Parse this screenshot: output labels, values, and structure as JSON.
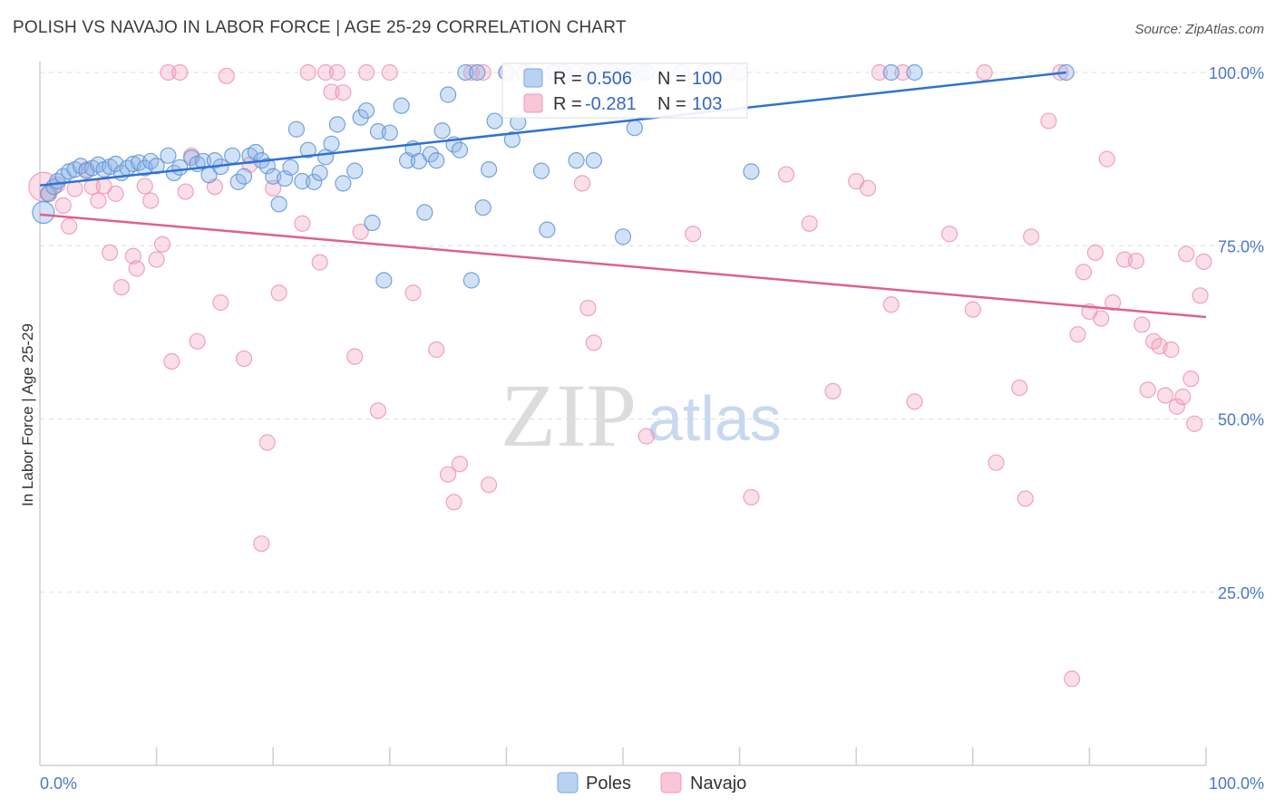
{
  "header": {
    "title": "POLISH VS NAVAJO IN LABOR FORCE | AGE 25-29 CORRELATION CHART",
    "source": "Source: ZipAtlas.com"
  },
  "watermark": {
    "zip": "ZIP",
    "atlas": "atlas"
  },
  "legend": {
    "row1": {
      "r_label": "R =",
      "r_value": "0.506",
      "n_label": "N =",
      "n_value": "100"
    },
    "row2": {
      "r_label": "R =",
      "r_value": "-0.281",
      "n_label": "N =",
      "n_value": "103"
    }
  },
  "bottom_legend": {
    "poles": "Poles",
    "navajo": "Navajo"
  },
  "chart_data": {
    "type": "scatter",
    "ylabel": "In Labor Force | Age 25-29",
    "x_tick_labels": [
      "0.0%",
      "100.0%"
    ],
    "y_tick_labels": [
      "25.0%",
      "50.0%",
      "75.0%",
      "100.0%"
    ],
    "xlim": [
      0,
      100
    ],
    "ylim": [
      0,
      101
    ],
    "grid": true,
    "colors": {
      "poles": "#8fb6e8",
      "poles_line": "#2e72d2",
      "navajo": "#f2a9c2",
      "navajo_line": "#e0608f"
    },
    "series": [
      {
        "name": "Poles",
        "r": 0.506,
        "n": 100,
        "trend": [
          [
            0,
            83.7
          ],
          [
            88,
            100
          ]
        ],
        "points": [
          [
            0.3,
            79.8
          ],
          [
            0.7,
            82.5
          ],
          [
            1.2,
            83.5
          ],
          [
            1.5,
            84.3
          ],
          [
            2,
            85
          ],
          [
            2.5,
            85.7
          ],
          [
            3,
            86
          ],
          [
            3.5,
            86.5
          ],
          [
            4,
            85.8
          ],
          [
            4.5,
            86.2
          ],
          [
            5,
            86.7
          ],
          [
            5.5,
            86
          ],
          [
            6,
            86.4
          ],
          [
            6.5,
            86.8
          ],
          [
            7,
            85.5
          ],
          [
            7.5,
            86.2
          ],
          [
            8,
            86.8
          ],
          [
            8.5,
            87
          ],
          [
            9,
            86.2
          ],
          [
            9.5,
            87.2
          ],
          [
            10,
            86.5
          ],
          [
            11,
            88
          ],
          [
            11.5,
            85.5
          ],
          [
            12,
            86.3
          ],
          [
            13,
            87.7
          ],
          [
            13.5,
            86.8
          ],
          [
            14,
            87.2
          ],
          [
            14.5,
            85.2
          ],
          [
            15,
            87.3
          ],
          [
            15.5,
            86.4
          ],
          [
            16.5,
            88
          ],
          [
            17,
            84.2
          ],
          [
            17.5,
            85
          ],
          [
            18,
            88
          ],
          [
            18.5,
            88.5
          ],
          [
            19,
            87.3
          ],
          [
            19.5,
            86.5
          ],
          [
            20,
            85
          ],
          [
            20.5,
            81
          ],
          [
            21,
            84.7
          ],
          [
            21.5,
            86.3
          ],
          [
            22,
            91.8
          ],
          [
            22.5,
            84.3
          ],
          [
            23,
            88.8
          ],
          [
            23.5,
            84.2
          ],
          [
            24,
            85.5
          ],
          [
            24.5,
            87.8
          ],
          [
            25,
            89.7
          ],
          [
            25.5,
            92.5
          ],
          [
            26,
            84
          ],
          [
            27,
            85.8
          ],
          [
            27.5,
            93.5
          ],
          [
            28,
            94.5
          ],
          [
            28.5,
            78.3
          ],
          [
            29,
            91.5
          ],
          [
            29.5,
            70
          ],
          [
            30,
            91.3
          ],
          [
            31,
            95.2
          ],
          [
            31.5,
            87.3
          ],
          [
            32,
            89
          ],
          [
            32.5,
            87.2
          ],
          [
            33,
            79.8
          ],
          [
            33.5,
            88.2
          ],
          [
            34,
            87.3
          ],
          [
            34.5,
            91.6
          ],
          [
            35,
            96.8
          ],
          [
            35.5,
            89.6
          ],
          [
            36,
            88.8
          ],
          [
            36.5,
            100
          ],
          [
            37,
            70
          ],
          [
            37.5,
            100
          ],
          [
            38,
            80.5
          ],
          [
            38.5,
            86
          ],
          [
            39,
            93
          ],
          [
            40,
            100
          ],
          [
            40.5,
            90.3
          ],
          [
            41,
            92.8
          ],
          [
            41.5,
            100
          ],
          [
            43,
            85.8
          ],
          [
            43.5,
            77.3
          ],
          [
            44,
            100
          ],
          [
            45,
            100
          ],
          [
            46,
            87.3
          ],
          [
            47,
            100
          ],
          [
            47.5,
            87.3
          ],
          [
            48,
            100
          ],
          [
            49,
            100
          ],
          [
            50,
            76.3
          ],
          [
            50.5,
            100
          ],
          [
            51,
            92
          ],
          [
            51.5,
            100
          ],
          [
            52,
            100
          ],
          [
            55,
            100
          ],
          [
            57,
            100
          ],
          [
            60,
            100
          ],
          [
            61,
            85.7
          ],
          [
            73,
            100
          ],
          [
            75,
            100
          ],
          [
            88,
            100
          ]
        ]
      },
      {
        "name": "Navajo",
        "r": -0.281,
        "n": 103,
        "trend": [
          [
            0,
            79.5
          ],
          [
            100,
            64.7
          ]
        ],
        "points": [
          [
            0.3,
            83.5
          ],
          [
            0.8,
            82.5
          ],
          [
            1.5,
            83.8
          ],
          [
            2,
            80.8
          ],
          [
            2.5,
            77.8
          ],
          [
            3,
            83.2
          ],
          [
            4,
            86
          ],
          [
            4.5,
            83.5
          ],
          [
            5,
            81.5
          ],
          [
            5.5,
            83.6
          ],
          [
            6,
            74
          ],
          [
            6.5,
            82.5
          ],
          [
            7,
            69
          ],
          [
            8,
            73.5
          ],
          [
            8.3,
            71.7
          ],
          [
            9,
            83.6
          ],
          [
            9.5,
            81.5
          ],
          [
            10,
            73
          ],
          [
            10.5,
            75.2
          ],
          [
            11,
            100
          ],
          [
            11.3,
            58.3
          ],
          [
            12,
            100
          ],
          [
            12.5,
            82.8
          ],
          [
            13,
            88
          ],
          [
            13.5,
            61.2
          ],
          [
            15,
            83.5
          ],
          [
            15.5,
            66.8
          ],
          [
            16,
            99.5
          ],
          [
            17.5,
            58.7
          ],
          [
            18,
            86.7
          ],
          [
            19,
            32
          ],
          [
            19.5,
            46.6
          ],
          [
            20,
            83.3
          ],
          [
            20.5,
            68.2
          ],
          [
            22.5,
            78.2
          ],
          [
            23,
            100
          ],
          [
            24,
            72.6
          ],
          [
            24.5,
            100
          ],
          [
            25,
            97.2
          ],
          [
            25.5,
            100
          ],
          [
            26,
            97.1
          ],
          [
            27,
            59
          ],
          [
            27.5,
            77
          ],
          [
            28,
            100
          ],
          [
            29,
            51.2
          ],
          [
            30,
            100
          ],
          [
            32,
            68.2
          ],
          [
            34,
            60
          ],
          [
            35,
            42
          ],
          [
            35.5,
            38
          ],
          [
            36,
            43.5
          ],
          [
            37,
            100
          ],
          [
            38,
            100
          ],
          [
            38.5,
            40.5
          ],
          [
            40,
            100
          ],
          [
            42,
            100
          ],
          [
            44,
            100
          ],
          [
            46,
            100
          ],
          [
            46.5,
            84
          ],
          [
            47,
            66
          ],
          [
            47.5,
            61
          ],
          [
            49,
            100
          ],
          [
            50,
            100
          ],
          [
            52,
            47.5
          ],
          [
            56,
            76.7
          ],
          [
            59,
            100
          ],
          [
            61,
            38.7
          ],
          [
            64,
            85.3
          ],
          [
            66,
            78.2
          ],
          [
            68,
            54
          ],
          [
            70,
            84.3
          ],
          [
            71,
            83.3
          ],
          [
            72,
            100
          ],
          [
            73,
            66.5
          ],
          [
            74,
            100
          ],
          [
            75,
            52.5
          ],
          [
            78,
            76.7
          ],
          [
            80,
            65.8
          ],
          [
            81,
            100
          ],
          [
            82,
            43.7
          ],
          [
            84,
            54.5
          ],
          [
            84.5,
            38.5
          ],
          [
            85,
            76.3
          ],
          [
            86.5,
            93
          ],
          [
            87.5,
            100
          ],
          [
            88.5,
            12.5
          ],
          [
            89,
            62.2
          ],
          [
            89.5,
            71.2
          ],
          [
            90,
            65.5
          ],
          [
            90.5,
            74
          ],
          [
            91,
            64.5
          ],
          [
            91.5,
            87.5
          ],
          [
            92,
            66.8
          ],
          [
            93,
            73
          ],
          [
            94,
            72.8
          ],
          [
            94.5,
            63.6
          ],
          [
            95,
            54.2
          ],
          [
            95.5,
            61.2
          ],
          [
            96,
            60.5
          ],
          [
            96.5,
            53.4
          ],
          [
            97,
            60
          ],
          [
            97.5,
            51.8
          ],
          [
            98,
            53.2
          ],
          [
            98.3,
            73.8
          ],
          [
            98.7,
            55.8
          ],
          [
            99,
            49.3
          ],
          [
            99.5,
            67.8
          ],
          [
            99.8,
            72.7
          ]
        ]
      }
    ]
  }
}
